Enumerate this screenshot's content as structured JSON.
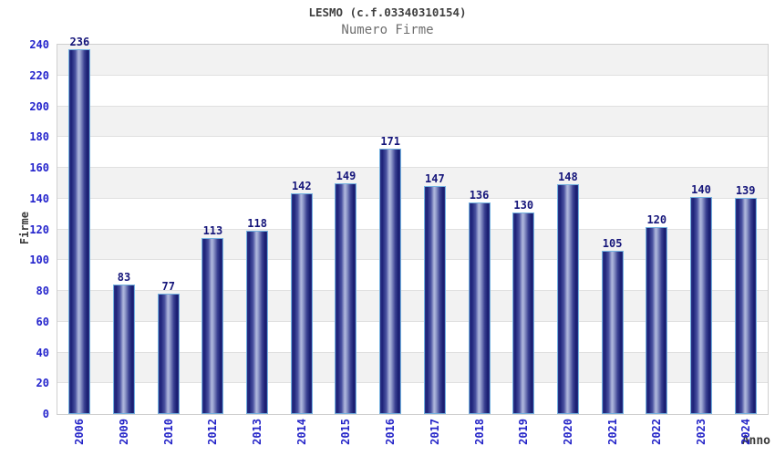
{
  "chart_data": {
    "type": "bar",
    "title": "LESMO (c.f.03340310154)",
    "subtitle": "Numero Firme",
    "xlabel": "Anno",
    "ylabel": "Firme",
    "categories": [
      "2006",
      "2009",
      "2010",
      "2012",
      "2013",
      "2014",
      "2015",
      "2016",
      "2017",
      "2018",
      "2019",
      "2020",
      "2021",
      "2022",
      "2023",
      "2024"
    ],
    "values": [
      236,
      83,
      77,
      113,
      118,
      142,
      149,
      171,
      147,
      136,
      130,
      148,
      105,
      120,
      140,
      139
    ],
    "ylim": [
      0,
      240
    ],
    "ytick_step": 20,
    "grid": true,
    "legend": "none",
    "colors": {
      "bar_dark": "#1d2278",
      "bar_highlight": "#b0b8dd",
      "bar_border": "#74b2e0",
      "value_label": "#15157a",
      "tick_label": "#2424cc",
      "band_gray": "#f2f2f2",
      "band_white": "#ffffff",
      "grid_line": "#e0e0e0",
      "plot_border": "#cfcfcf",
      "title_color": "#404040",
      "subtitle_color": "#6e6e6e"
    }
  }
}
